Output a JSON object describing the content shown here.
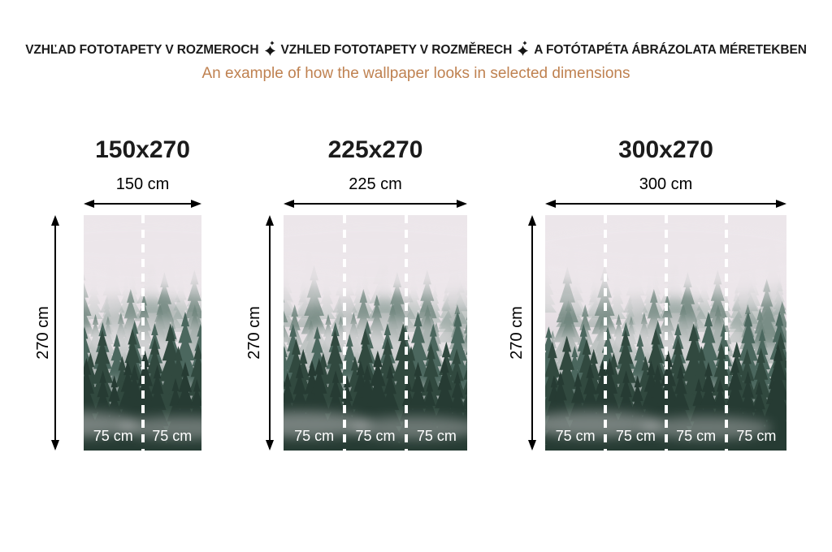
{
  "header": {
    "title_parts": [
      "VZHĽAD FOTOTAPETY V ROZMEROCH",
      "VZHLED FOTOTAPETY V ROZMĚRECH",
      "A FOTÓTAPÉTA ÁBRÁZOLATA MÉRETEKBEN"
    ],
    "separator_icon": "sparkle-icon",
    "subtitle": "An example of how the wallpaper looks in selected dimensions"
  },
  "panels": [
    {
      "title": "150x270",
      "width_label": "150 cm",
      "height_label": "270 cm",
      "segments": [
        "75 cm",
        "75 cm"
      ]
    },
    {
      "title": "225x270",
      "width_label": "225 cm",
      "height_label": "270 cm",
      "segments": [
        "75 cm",
        "75 cm",
        "75 cm"
      ]
    },
    {
      "title": "300x270",
      "width_label": "300 cm",
      "height_label": "270 cm",
      "segments": [
        "75 cm",
        "75 cm",
        "75 cm",
        "75 cm"
      ]
    }
  ],
  "colors": {
    "heading_text": "#1b1b1b",
    "subtitle_text": "#bf8150",
    "dimension_text": "#000000",
    "segment_text": "#ffffff",
    "seam_dash": "#ffffff"
  },
  "wallpaper": {
    "subject": "misty coniferous forest in fog",
    "palette": {
      "sky_top": "#ece4e9",
      "sky_mid": "#e4dde2",
      "sky_low": "#d2d5d3",
      "sky_bottom": "#bfc7c4",
      "fog": "#ede7eb",
      "trees_far": "#a9b7b1",
      "trees_tall": "#8a9c95",
      "trees_mid": "#71877f",
      "trees_near": "#4b675e",
      "trees_dark": "#31493f",
      "trees_base": "#263b33"
    }
  }
}
